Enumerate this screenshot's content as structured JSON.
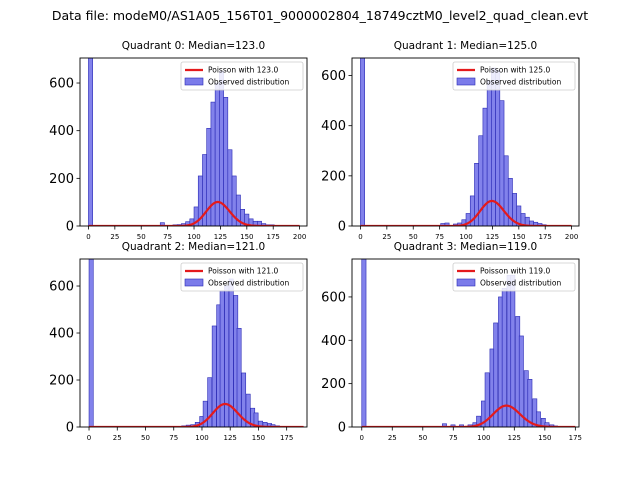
{
  "figure": {
    "suptitle": "Data file: modeM0/AS1A05_156T01_9000002804_18749cztM0_level2_quad_clean.evt"
  },
  "colors": {
    "hist_fill": "#7b7bea",
    "hist_edge": "#2a2ab5",
    "poisson_line": "#e41a1c",
    "axes": "#000000"
  },
  "chart_data": [
    {
      "type": "bar",
      "title": "Quadrant 0: Median=123.0",
      "median": 123.0,
      "xlim": [
        -8,
        207
      ],
      "ylim": [
        0,
        705
      ],
      "xticks": [
        0,
        25,
        50,
        75,
        100,
        125,
        150,
        175,
        200
      ],
      "yticks": [
        0,
        200,
        400,
        600
      ],
      "bin_width": 4,
      "observed": {
        "name": "Observed distribution",
        "bins": [
          {
            "x": 0,
            "y": 705
          },
          {
            "x": 68,
            "y": 14
          },
          {
            "x": 80,
            "y": 5
          },
          {
            "x": 84,
            "y": 6
          },
          {
            "x": 88,
            "y": 10
          },
          {
            "x": 92,
            "y": 18
          },
          {
            "x": 96,
            "y": 30
          },
          {
            "x": 100,
            "y": 80
          },
          {
            "x": 104,
            "y": 210
          },
          {
            "x": 108,
            "y": 300
          },
          {
            "x": 112,
            "y": 410
          },
          {
            "x": 116,
            "y": 520
          },
          {
            "x": 120,
            "y": 600
          },
          {
            "x": 124,
            "y": 650
          },
          {
            "x": 128,
            "y": 540
          },
          {
            "x": 132,
            "y": 320
          },
          {
            "x": 136,
            "y": 210
          },
          {
            "x": 140,
            "y": 130
          },
          {
            "x": 144,
            "y": 70
          },
          {
            "x": 148,
            "y": 50
          },
          {
            "x": 152,
            "y": 30
          },
          {
            "x": 156,
            "y": 20
          },
          {
            "x": 160,
            "y": 20
          },
          {
            "x": 164,
            "y": 10
          },
          {
            "x": 168,
            "y": 5
          },
          {
            "x": 172,
            "y": 5
          }
        ]
      },
      "poisson": {
        "name": "Poisson with 123.0",
        "lambda": 123.0,
        "x_range": [
          0,
          200
        ],
        "scale": 2.8
      },
      "legend": {
        "position": "top-right"
      }
    },
    {
      "type": "bar",
      "title": "Quadrant 1: Median=125.0",
      "median": 125.0,
      "xlim": [
        -8,
        207
      ],
      "ylim": [
        0,
        670
      ],
      "xticks": [
        0,
        25,
        50,
        75,
        100,
        125,
        150,
        175,
        200
      ],
      "yticks": [
        0,
        200,
        400,
        600
      ],
      "bin_width": 4,
      "observed": {
        "name": "Observed distribution",
        "bins": [
          {
            "x": 0,
            "y": 670
          },
          {
            "x": 76,
            "y": 10
          },
          {
            "x": 80,
            "y": 12
          },
          {
            "x": 88,
            "y": 8
          },
          {
            "x": 92,
            "y": 12
          },
          {
            "x": 96,
            "y": 25
          },
          {
            "x": 100,
            "y": 50
          },
          {
            "x": 104,
            "y": 120
          },
          {
            "x": 108,
            "y": 250
          },
          {
            "x": 112,
            "y": 360
          },
          {
            "x": 116,
            "y": 470
          },
          {
            "x": 120,
            "y": 580
          },
          {
            "x": 124,
            "y": 630
          },
          {
            "x": 128,
            "y": 620
          },
          {
            "x": 132,
            "y": 500
          },
          {
            "x": 136,
            "y": 280
          },
          {
            "x": 140,
            "y": 190
          },
          {
            "x": 144,
            "y": 130
          },
          {
            "x": 148,
            "y": 80
          },
          {
            "x": 152,
            "y": 50
          },
          {
            "x": 156,
            "y": 35
          },
          {
            "x": 160,
            "y": 20
          },
          {
            "x": 164,
            "y": 15
          },
          {
            "x": 168,
            "y": 10
          },
          {
            "x": 172,
            "y": 5
          }
        ]
      },
      "poisson": {
        "name": "Poisson with 125.0",
        "lambda": 125.0,
        "x_range": [
          0,
          200
        ],
        "scale": 2.8
      },
      "legend": {
        "position": "top-right"
      }
    },
    {
      "type": "bar",
      "title": "Quadrant 2: Median=121.0",
      "median": 121.0,
      "xlim": [
        -8,
        193
      ],
      "ylim": [
        0,
        715
      ],
      "xticks": [
        0,
        25,
        50,
        75,
        100,
        125,
        150,
        175
      ],
      "yticks": [
        0,
        200,
        400,
        600
      ],
      "bin_width": 3.75,
      "observed": {
        "name": "Observed distribution",
        "bins": [
          {
            "x": 0,
            "y": 715
          },
          {
            "x": 82,
            "y": 5
          },
          {
            "x": 86,
            "y": 8
          },
          {
            "x": 90,
            "y": 10
          },
          {
            "x": 94,
            "y": 20
          },
          {
            "x": 98,
            "y": 45
          },
          {
            "x": 101,
            "y": 110
          },
          {
            "x": 105,
            "y": 210
          },
          {
            "x": 109,
            "y": 430
          },
          {
            "x": 113,
            "y": 520
          },
          {
            "x": 116,
            "y": 580
          },
          {
            "x": 120,
            "y": 600
          },
          {
            "x": 124,
            "y": 630
          },
          {
            "x": 128,
            "y": 560
          },
          {
            "x": 131,
            "y": 420
          },
          {
            "x": 135,
            "y": 230
          },
          {
            "x": 139,
            "y": 140
          },
          {
            "x": 143,
            "y": 80
          },
          {
            "x": 146,
            "y": 60
          },
          {
            "x": 150,
            "y": 25
          },
          {
            "x": 154,
            "y": 20
          },
          {
            "x": 158,
            "y": 15
          },
          {
            "x": 161,
            "y": 10
          },
          {
            "x": 165,
            "y": 5
          }
        ]
      },
      "poisson": {
        "name": "Poisson with 121.0",
        "lambda": 121.0,
        "x_range": [
          0,
          190
        ],
        "scale": 2.7
      },
      "legend": {
        "position": "top-right"
      }
    },
    {
      "type": "bar",
      "title": "Quadrant 3: Median=119.0",
      "median": 119.0,
      "xlim": [
        -8,
        178
      ],
      "ylim": [
        0,
        775
      ],
      "xticks": [
        0,
        25,
        50,
        75,
        100,
        125,
        150,
        175
      ],
      "yticks": [
        0,
        200,
        400,
        600
      ],
      "bin_width": 3.5,
      "observed": {
        "name": "Observed distribution",
        "bins": [
          {
            "x": 0,
            "y": 775
          },
          {
            "x": 66,
            "y": 15
          },
          {
            "x": 73,
            "y": 10
          },
          {
            "x": 80,
            "y": 10
          },
          {
            "x": 87,
            "y": 10
          },
          {
            "x": 91,
            "y": 20
          },
          {
            "x": 94,
            "y": 50
          },
          {
            "x": 98,
            "y": 120
          },
          {
            "x": 101,
            "y": 250
          },
          {
            "x": 105,
            "y": 360
          },
          {
            "x": 108,
            "y": 480
          },
          {
            "x": 112,
            "y": 600
          },
          {
            "x": 115,
            "y": 640
          },
          {
            "x": 119,
            "y": 700
          },
          {
            "x": 122,
            "y": 700
          },
          {
            "x": 126,
            "y": 510
          },
          {
            "x": 129,
            "y": 420
          },
          {
            "x": 133,
            "y": 260
          },
          {
            "x": 136,
            "y": 220
          },
          {
            "x": 140,
            "y": 130
          },
          {
            "x": 143,
            "y": 70
          },
          {
            "x": 147,
            "y": 40
          },
          {
            "x": 150,
            "y": 20
          },
          {
            "x": 154,
            "y": 10
          },
          {
            "x": 157,
            "y": 5
          }
        ]
      },
      "poisson": {
        "name": "Poisson with 119.0",
        "lambda": 119.0,
        "x_range": [
          0,
          175
        ],
        "scale": 2.7
      },
      "legend": {
        "position": "top-right"
      }
    }
  ]
}
